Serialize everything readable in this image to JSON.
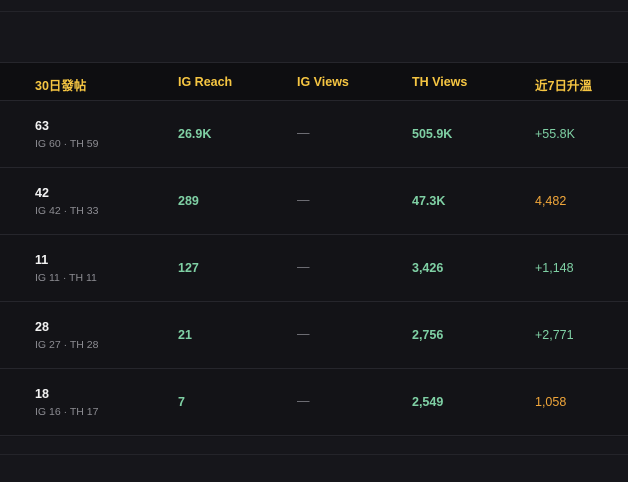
{
  "colors": {
    "header_text": "#f5c542",
    "positive": "#7fd0a4",
    "warning": "#f0a63a",
    "muted": "#8c8c92"
  },
  "table": {
    "headers": [
      "30日發帖",
      "IG Reach",
      "IG Views",
      "TH Views",
      "近7日升溫"
    ],
    "rows": [
      {
        "posts": "63",
        "breakdown": "IG 60 · TH 59",
        "ig_reach": "26.9K",
        "ig_views": "—",
        "th_views": "505.9K",
        "trend": "+55.8K",
        "trend_color": "#7fd0a4"
      },
      {
        "posts": "42",
        "breakdown": "IG 42 · TH 33",
        "ig_reach": "289",
        "ig_views": "—",
        "th_views": "47.3K",
        "trend": "4,482",
        "trend_color": "#f0a63a"
      },
      {
        "posts": "11",
        "breakdown": "IG 11 · TH 11",
        "ig_reach": "127",
        "ig_views": "—",
        "th_views": "3,426",
        "trend": "+1,148",
        "trend_color": "#7fd0a4"
      },
      {
        "posts": "28",
        "breakdown": "IG 27 · TH 28",
        "ig_reach": "21",
        "ig_views": "—",
        "th_views": "2,756",
        "trend": "+2,771",
        "trend_color": "#7fd0a4"
      },
      {
        "posts": "18",
        "breakdown": "IG 16 · TH 17",
        "ig_reach": "7",
        "ig_views": "—",
        "th_views": "2,549",
        "trend": "1,058",
        "trend_color": "#f0a63a"
      }
    ]
  }
}
